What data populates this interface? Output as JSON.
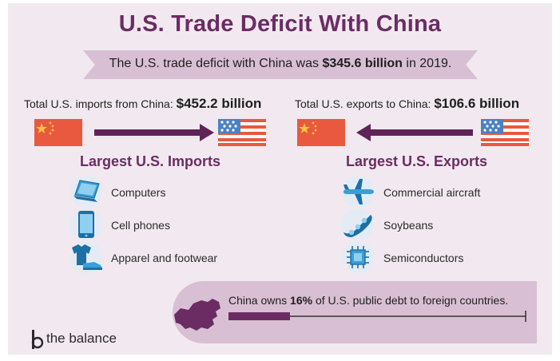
{
  "title": "U.S. Trade Deficit With China",
  "summary": {
    "prefix": "The U.S. trade deficit with China was ",
    "amount": "$345.6 billion",
    "suffix": " in 2019."
  },
  "imports": {
    "total_label": "Total U.S. imports from China: ",
    "total_value": "$452.2 billion",
    "heading": "Largest U.S. Imports",
    "items": [
      {
        "label": "Computers",
        "icon": "laptop-icon"
      },
      {
        "label": "Cell phones",
        "icon": "cell-phone-icon"
      },
      {
        "label": "Apparel and footwear",
        "icon": "apparel-footwear-icon"
      }
    ]
  },
  "exports": {
    "total_label": "Total U.S. exports to China: ",
    "total_value": "$106.6 billion",
    "heading": "Largest U.S. Exports",
    "items": [
      {
        "label": "Commercial aircraft",
        "icon": "airplane-icon"
      },
      {
        "label": "Soybeans",
        "icon": "soybeans-icon"
      },
      {
        "label": "Semiconductors",
        "icon": "semiconductor-chip-icon"
      }
    ]
  },
  "debt": {
    "prefix": "China owns ",
    "percent": "16%",
    "suffix": " of U.S. public debt to foreign countries.",
    "share": 0.16
  },
  "brand": {
    "name": "the balance"
  },
  "colors": {
    "title": "#6b2c63",
    "ribbon": "#d9bfd4",
    "arrow": "#5e2457",
    "china_red": "#e8593f",
    "star_yellow": "#f4c542",
    "us_blue": "#4a82c3",
    "us_red": "#e8593f",
    "icon_blue": "#3a9fd6",
    "background": "#f1e9ef"
  }
}
